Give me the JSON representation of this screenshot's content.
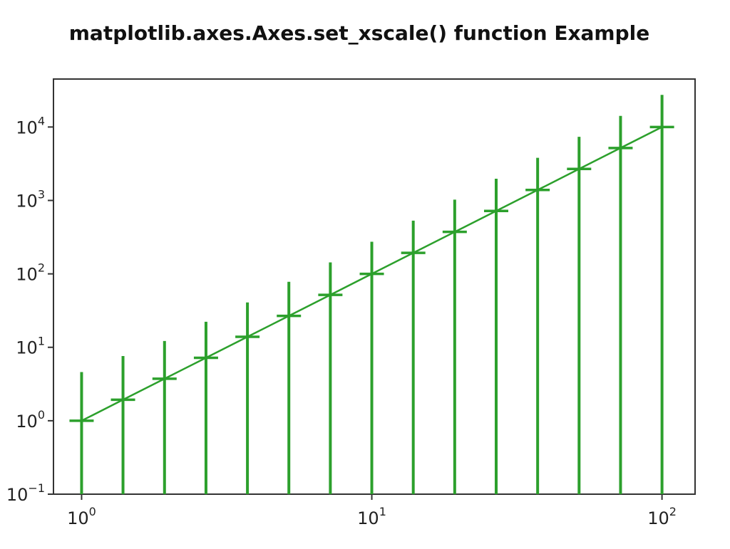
{
  "chart_data": {
    "type": "line",
    "title": "matplotlib.axes.Axes.set_xscale() function Example",
    "xlabel": "",
    "ylabel": "",
    "xscale": "log",
    "yscale": "log",
    "xlim": [
      0.8,
      130
    ],
    "ylim": [
      0.1,
      45000
    ],
    "grid": false,
    "legend": "none",
    "x_ticks": [
      {
        "base": "10",
        "exp": "0",
        "value": 1
      },
      {
        "base": "10",
        "exp": "1",
        "value": 10
      },
      {
        "base": "10",
        "exp": "2",
        "value": 100
      }
    ],
    "y_ticks": [
      {
        "base": "10",
        "exp": "−1",
        "value": 0.1
      },
      {
        "base": "10",
        "exp": "0",
        "value": 1
      },
      {
        "base": "10",
        "exp": "1",
        "value": 10
      },
      {
        "base": "10",
        "exp": "2",
        "value": 100
      },
      {
        "base": "10",
        "exp": "3",
        "value": 1000
      },
      {
        "base": "10",
        "exp": "4",
        "value": 10000
      }
    ],
    "series": [
      {
        "color": "#2ca02c",
        "marker": "_",
        "x": [
          1.0,
          1.389,
          1.931,
          2.683,
          3.728,
          5.179,
          7.197,
          10.0,
          13.895,
          19.307,
          26.827,
          37.276,
          51.795,
          71.969,
          100.0
        ],
        "y": [
          1.0,
          1.93,
          3.73,
          7.2,
          13.9,
          26.8,
          51.8,
          100.0,
          193.1,
          372.8,
          719.7,
          1389.5,
          2682.7,
          5179.5,
          10000.0
        ],
        "yerr_upper": [
          4.6,
          7.6,
          12.2,
          22.3,
          40.8,
          78.0,
          143.2,
          274.0,
          531.0,
          1024.0,
          1977.0,
          3810.0,
          7350.0,
          14190.0,
          27400.0
        ],
        "yerr_lower_clipped_at": 0.1
      }
    ]
  }
}
